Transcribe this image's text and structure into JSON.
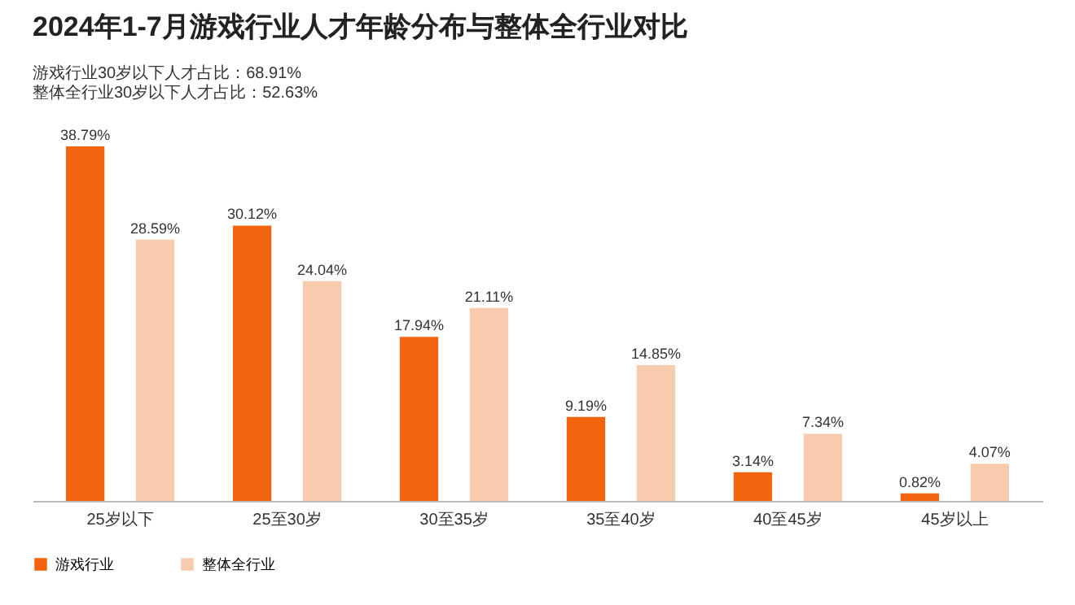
{
  "chart_data": {
    "type": "bar",
    "title": "2024年1-7月游戏行业人才年龄分布与整体全行业对比",
    "annotations": [
      "游戏行业30岁以下人才占比：68.91%",
      "整体全行业30岁以下人才占比：52.63%"
    ],
    "categories": [
      "25岁以下",
      "25至30岁",
      "30至35岁",
      "35至40岁",
      "40至45岁",
      "45岁以上"
    ],
    "series": [
      {
        "name": "游戏行业",
        "color": "#f4640f",
        "values": [
          38.79,
          30.12,
          17.94,
          9.19,
          3.14,
          0.82
        ],
        "value_labels": [
          "38.79%",
          "30.12%",
          "17.94%",
          "9.19%",
          "3.14%",
          "0.82%"
        ]
      },
      {
        "name": "整体全行业",
        "color": "#f8cbad",
        "values": [
          28.59,
          24.04,
          21.11,
          14.85,
          7.34,
          4.07
        ],
        "value_labels": [
          "28.59%",
          "24.04%",
          "21.11%",
          "14.85%",
          "7.34%",
          "4.07%"
        ]
      }
    ],
    "legend": "bottom",
    "grid": false
  }
}
